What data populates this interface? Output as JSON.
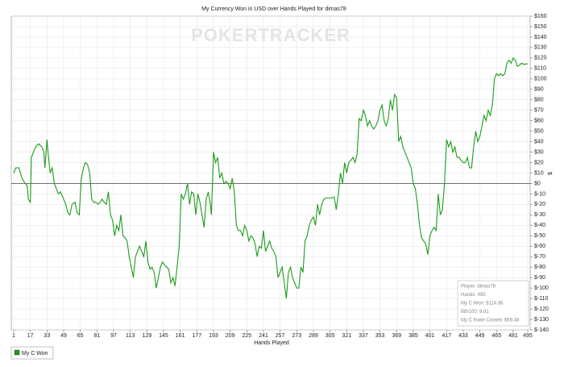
{
  "chart_data": {
    "type": "line",
    "title": "My Currency Won in USD over Hands Played for dimas78",
    "watermark": "POKERTRACKER",
    "xlabel": "Hands Played",
    "ylabel": "$",
    "xlim": [
      1,
      495
    ],
    "ylim": [
      -140,
      160
    ],
    "xticks": [
      1,
      17,
      33,
      49,
      65,
      81,
      97,
      113,
      129,
      145,
      161,
      177,
      193,
      209,
      225,
      241,
      257,
      273,
      289,
      305,
      321,
      337,
      353,
      369,
      385,
      401,
      417,
      433,
      449,
      465,
      481,
      495
    ],
    "yticks": [
      {
        "value": -140,
        "label": "$-140"
      },
      {
        "value": -130,
        "label": "$-130"
      },
      {
        "value": -120,
        "label": "$-120"
      },
      {
        "value": -110,
        "label": "$-110"
      },
      {
        "value": -100,
        "label": "$-100"
      },
      {
        "value": -90,
        "label": "$-90"
      },
      {
        "value": -80,
        "label": "$-80"
      },
      {
        "value": -70,
        "label": "$-70"
      },
      {
        "value": -60,
        "label": "$-60"
      },
      {
        "value": -50,
        "label": "$-50"
      },
      {
        "value": -40,
        "label": "$-40"
      },
      {
        "value": -30,
        "label": "$-30"
      },
      {
        "value": -20,
        "label": "$-20"
      },
      {
        "value": -10,
        "label": "$-10"
      },
      {
        "value": 0,
        "label": "$0"
      },
      {
        "value": 10,
        "label": "$10"
      },
      {
        "value": 20,
        "label": "$20"
      },
      {
        "value": 30,
        "label": "$30"
      },
      {
        "value": 40,
        "label": "$40"
      },
      {
        "value": 50,
        "label": "$50"
      },
      {
        "value": 60,
        "label": "$60"
      },
      {
        "value": 70,
        "label": "$70"
      },
      {
        "value": 80,
        "label": "$80"
      },
      {
        "value": 90,
        "label": "$90"
      },
      {
        "value": 100,
        "label": "$100"
      },
      {
        "value": 110,
        "label": "$110"
      },
      {
        "value": 120,
        "label": "$120"
      },
      {
        "value": 130,
        "label": "$130"
      },
      {
        "value": 140,
        "label": "$140"
      },
      {
        "value": 150,
        "label": "$150"
      },
      {
        "value": 160,
        "label": "$160"
      }
    ],
    "grid": true,
    "legend": "bottom-left",
    "info_lines": [
      "Player: dimas78",
      "Hands: 495",
      "My C Won: $114.36",
      "BB/100: 9.81",
      "My C Rake Contrib: $69.48"
    ],
    "x": [
      1,
      3,
      6,
      9,
      12,
      14,
      15,
      17,
      18,
      20,
      22,
      25,
      28,
      30,
      31,
      33,
      34,
      36,
      38,
      40,
      42,
      44,
      46,
      49,
      51,
      53,
      55,
      57,
      60,
      62,
      64,
      66,
      68,
      70,
      72,
      74,
      76,
      78,
      80,
      82,
      84,
      86,
      88,
      90,
      92,
      94,
      96,
      98,
      100,
      102,
      104,
      106,
      108,
      110,
      112,
      114,
      116,
      118,
      120,
      122,
      124,
      126,
      128,
      130,
      132,
      134,
      136,
      138,
      140,
      142,
      144,
      146,
      148,
      150,
      152,
      154,
      156,
      158,
      160,
      162,
      164,
      166,
      168,
      170,
      172,
      174,
      176,
      178,
      180,
      182,
      184,
      186,
      188,
      190,
      191,
      193,
      195,
      197,
      199,
      201,
      203,
      205,
      207,
      209,
      211,
      213,
      215,
      217,
      219,
      221,
      223,
      225,
      227,
      229,
      231,
      233,
      235,
      237,
      239,
      241,
      243,
      245,
      247,
      249,
      251,
      253,
      255,
      257,
      259,
      261,
      263,
      265,
      267,
      269,
      271,
      273,
      275,
      277,
      279,
      281,
      283,
      285,
      287,
      289,
      291,
      293,
      295,
      297,
      299,
      301,
      305,
      309,
      311,
      313,
      315,
      317,
      319,
      321,
      323,
      325,
      327,
      329,
      331,
      333,
      335,
      337,
      339,
      341,
      343,
      345,
      347,
      349,
      351,
      353,
      355,
      357,
      359,
      361,
      363,
      365,
      367,
      369,
      371,
      373,
      375,
      377,
      379,
      381,
      383,
      385,
      387,
      389,
      391,
      393,
      395,
      397,
      399,
      401,
      403,
      405,
      407,
      409,
      411,
      413,
      415,
      417,
      419,
      421,
      423,
      425,
      427,
      429,
      431,
      433,
      435,
      437,
      439,
      441,
      443,
      445,
      447,
      449,
      451,
      453,
      455,
      457,
      459,
      461,
      463,
      465,
      467,
      469,
      471,
      473,
      475,
      477,
      479,
      481,
      483,
      485,
      487,
      489,
      491,
      495
    ],
    "series": [
      {
        "name": "My C Won",
        "color": "#1a9c1a",
        "values": [
          10,
          15,
          15,
          5,
          0,
          -2,
          -15,
          -18,
          25,
          30,
          35,
          38,
          35,
          30,
          15,
          42,
          30,
          10,
          15,
          0,
          -5,
          -10,
          -8,
          -15,
          -20,
          -28,
          -30,
          -20,
          -18,
          -28,
          -30,
          5,
          15,
          20,
          18,
          10,
          -15,
          -18,
          -18,
          -20,
          -18,
          -15,
          -18,
          -20,
          -8,
          -30,
          -35,
          -50,
          -40,
          -45,
          -30,
          -50,
          -52,
          -55,
          -70,
          -80,
          -90,
          -70,
          -65,
          -60,
          -65,
          -70,
          -55,
          -75,
          -82,
          -80,
          -85,
          -100,
          -90,
          -80,
          -75,
          -78,
          -80,
          -82,
          -95,
          -90,
          -98,
          -80,
          -60,
          -10,
          -15,
          -10,
          0,
          -20,
          -8,
          -10,
          -30,
          -10,
          -18,
          -30,
          -42,
          -15,
          -8,
          -20,
          -30,
          30,
          20,
          25,
          5,
          10,
          0,
          2,
          0,
          -5,
          5,
          -8,
          -40,
          -45,
          -45,
          -50,
          -40,
          -45,
          -55,
          -50,
          -52,
          -58,
          -70,
          -60,
          -62,
          -45,
          -65,
          -60,
          -55,
          -62,
          -65,
          -70,
          -90,
          -85,
          -80,
          -95,
          -110,
          -85,
          -80,
          -90,
          -95,
          -100,
          -100,
          -80,
          -85,
          -55,
          -50,
          -40,
          -35,
          -32,
          -40,
          -20,
          -30,
          -20,
          -15,
          -14,
          -14,
          -13,
          -25,
          -10,
          10,
          0,
          20,
          10,
          20,
          22,
          25,
          20,
          28,
          62,
          60,
          70,
          65,
          55,
          60,
          55,
          52,
          55,
          60,
          70,
          75,
          60,
          55,
          62,
          80,
          70,
          85,
          82,
          40,
          45,
          35,
          30,
          25,
          20,
          15,
          0,
          -5,
          -20,
          -40,
          -52,
          -55,
          -58,
          -68,
          -50,
          -45,
          -42,
          -45,
          -10,
          -30,
          -25,
          0,
          42,
          35,
          40,
          30,
          35,
          25,
          25,
          22,
          20,
          20,
          25,
          15,
          15,
          35,
          50,
          40,
          45,
          55,
          65,
          60,
          70,
          65,
          75,
          100,
          105,
          103,
          105,
          103,
          105,
          115,
          118,
          115,
          120,
          118,
          112,
          113,
          115,
          114,
          114.36
        ]
      }
    ]
  }
}
